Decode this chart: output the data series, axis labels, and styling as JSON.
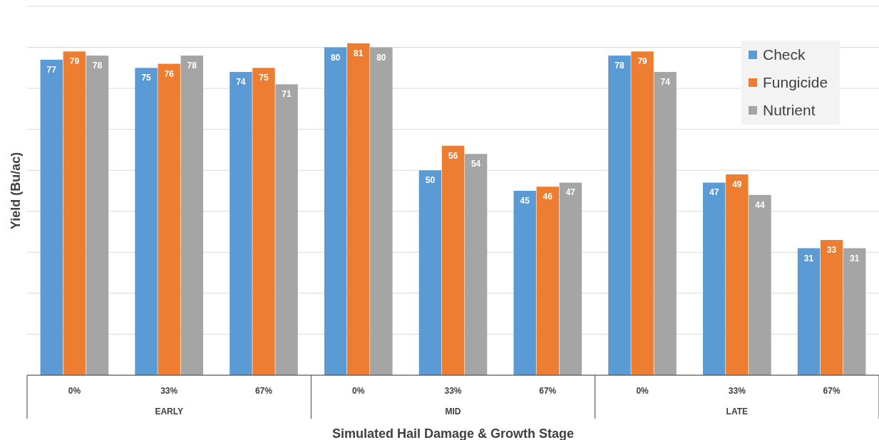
{
  "chart_data": {
    "type": "bar",
    "ylabel": "Yield (Bu/ac)",
    "xlabel": "Simulated Hail Damage & Growth Stage",
    "categories": [
      "0%",
      "33%",
      "67%",
      "0%",
      "33%",
      "67%",
      "0%",
      "33%",
      "67%"
    ],
    "annotations": [
      "EARLY",
      "MID",
      "LATE"
    ],
    "series": [
      {
        "name": "Check",
        "color": "#5b9bd5",
        "values": [
          77,
          75,
          74,
          80,
          50,
          45,
          78,
          47,
          31
        ]
      },
      {
        "name": "Fungicide",
        "color": "#ed7d31",
        "values": [
          79,
          76,
          75,
          81,
          56,
          46,
          79,
          49,
          33
        ]
      },
      {
        "name": "Nutrient",
        "color": "#a5a5a5",
        "values": [
          78,
          78,
          71,
          80,
          54,
          47,
          74,
          44,
          31
        ]
      }
    ],
    "ylim": [
      0,
      90
    ],
    "yticks": [
      {
        "value": 0,
        "label": null
      },
      {
        "value": 10,
        "label": null
      },
      {
        "value": 20,
        "label": null
      },
      {
        "value": 30,
        "label": null
      },
      {
        "value": 40,
        "label": null
      },
      {
        "value": 50,
        "label": null
      },
      {
        "value": 60,
        "label": null
      },
      {
        "value": 70,
        "label": null
      },
      {
        "value": 80,
        "label": null
      },
      {
        "value": 90,
        "label": null
      }
    ],
    "grid": "y",
    "legend": "top right",
    "data_labels": true
  }
}
